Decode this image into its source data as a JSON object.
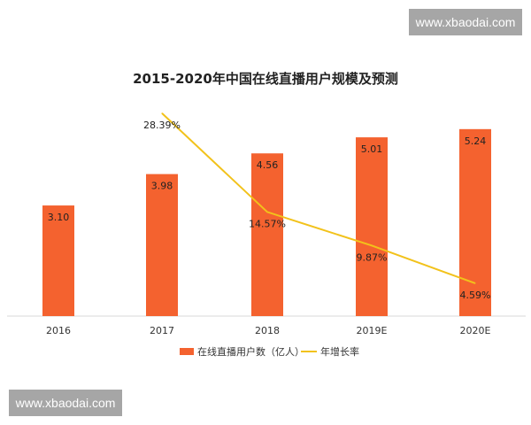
{
  "watermarks": {
    "top_right": "www.xbaodai.com",
    "bottom_left": "www.xbaodai.com"
  },
  "chart_data": {
    "type": "bar+line",
    "title": "2015-2020年中国在线直播用户规模及预测",
    "categories": [
      "2016",
      "2017",
      "2018",
      "2019E",
      "2020E"
    ],
    "series": [
      {
        "name": "在线直播用户数（亿人）",
        "type": "bar",
        "color": "#f4622f",
        "values": [
          3.1,
          3.98,
          4.56,
          5.01,
          5.24
        ],
        "labels": [
          "3.10",
          "3.98",
          "4.56",
          "5.01",
          "5.24"
        ]
      },
      {
        "name": "年增长率",
        "type": "line",
        "color": "#f2c21b",
        "values": [
          null,
          28.39,
          14.57,
          9.87,
          4.59
        ],
        "labels": [
          "",
          "28.39%",
          "14.57%",
          "9.87%",
          "4.59%"
        ]
      }
    ],
    "legend_position": "bottom",
    "grid": false
  }
}
